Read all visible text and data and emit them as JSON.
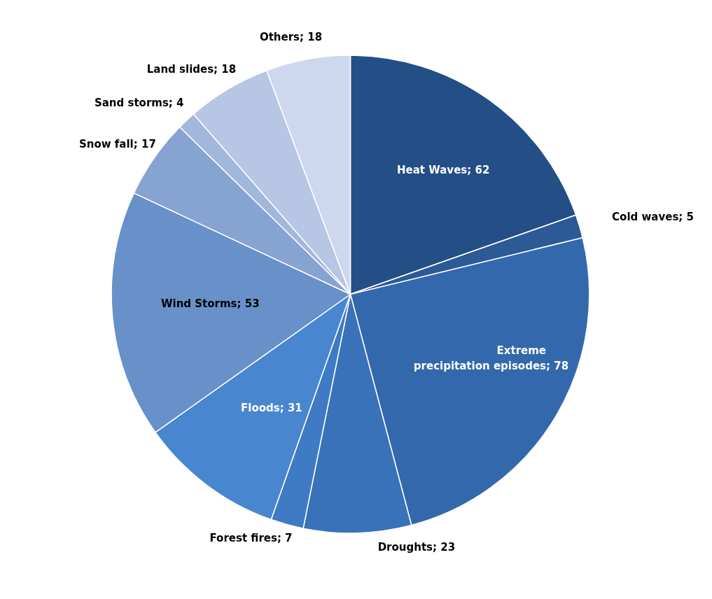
{
  "chart_data": {
    "type": "pie",
    "categories": [
      "Heat Waves",
      "Cold waves",
      "Extreme precipitation episodes",
      "Droughts",
      "Forest fires",
      "Floods",
      "Wind Storms",
      "Snow fall",
      "Sand storms",
      "Land slides",
      "Others"
    ],
    "values": [
      62,
      5,
      78,
      23,
      7,
      31,
      53,
      17,
      4,
      18,
      18
    ],
    "colors": [
      "#234e86",
      "#2c5a96",
      "#3468ac",
      "#3a72ba",
      "#3f7bc4",
      "#4886d0",
      "#6791c8",
      "#86a3d2",
      "#a2b7dc",
      "#b6c6e4",
      "#cdd8ee"
    ],
    "value_labels": [
      "; 62",
      "; 5",
      "; 78",
      "; 23",
      "; 7",
      "; 31",
      "; 53",
      "; 17",
      "; 4",
      "; 18",
      "; 18"
    ],
    "legend": false
  }
}
